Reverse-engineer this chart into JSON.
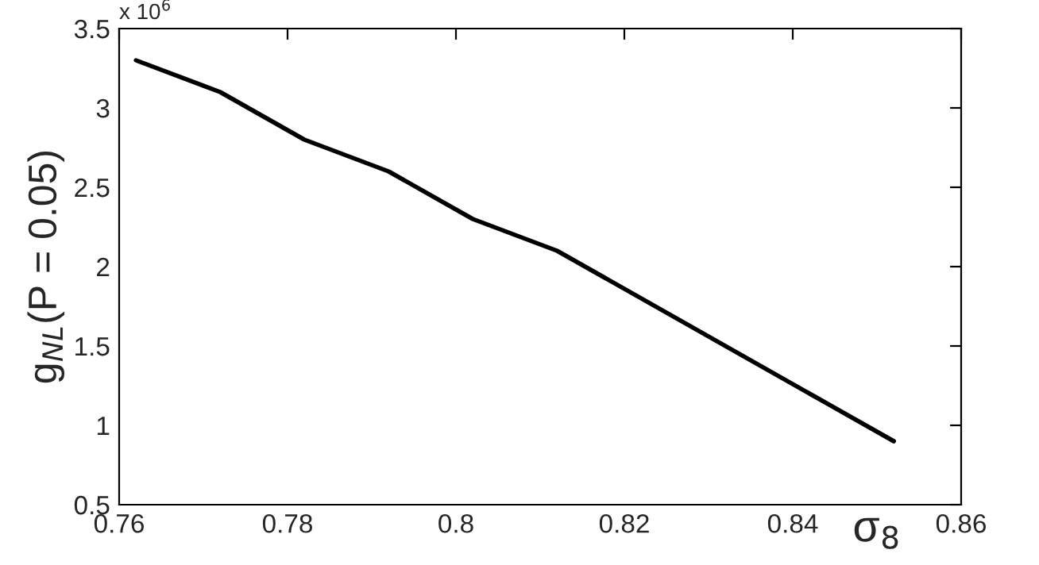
{
  "chart_data": {
    "type": "line",
    "x": [
      0.762,
      0.772,
      0.782,
      0.792,
      0.802,
      0.812,
      0.852
    ],
    "series": [
      {
        "color": "#000000",
        "values": [
          3.3,
          3.1,
          2.8,
          2.6,
          2.3,
          2.1,
          0.9
        ]
      }
    ],
    "xlabel": "σ$_{8}$",
    "ylabel": "g$_{NL}$(P = 0.05)",
    "annotations": [
      "x 10$^{6}$"
    ],
    "xlim": [
      0.76,
      0.86
    ],
    "xticks": [
      0.76,
      0.78,
      0.8,
      0.82,
      0.84,
      0.86
    ],
    "ylim": [
      0.5,
      3.5
    ],
    "yticks": [
      0.5,
      1,
      1.5,
      2,
      2.5,
      3,
      3.5
    ],
    "grid": false,
    "legend": false,
    "marker": "none",
    "line_style": "solid"
  }
}
